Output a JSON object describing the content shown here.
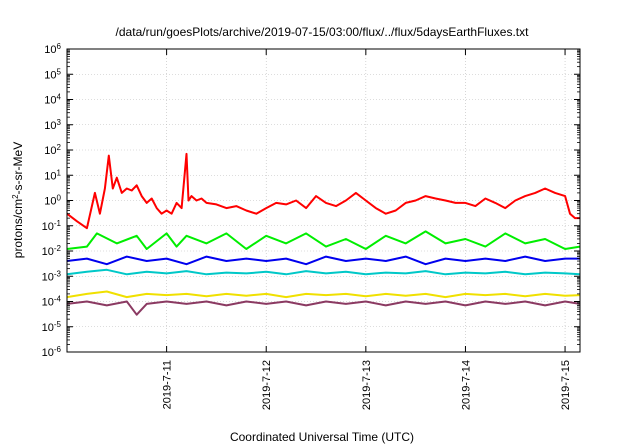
{
  "chart_data": {
    "type": "line",
    "title": "/data/run/goesPlots/archive/2019-07-15/03:00/flux/../flux/5daysEarthFluxes.txt",
    "xlabel": "Coordinated Universal Time (UTC)",
    "ylabel": {
      "prefix": "protons/cm",
      "sup": "2",
      "suffix": "-s-sr-MeV"
    },
    "x_range_days": [
      0.0,
      5.15
    ],
    "y_scale": "log",
    "ylim": [
      1e-06,
      1000000.0
    ],
    "grid": true,
    "legend": "none",
    "y_ticks": [
      {
        "value": 1e-06,
        "base": "10",
        "exp": "-6"
      },
      {
        "value": 1e-05,
        "base": "10",
        "exp": "-5"
      },
      {
        "value": 0.0001,
        "base": "10",
        "exp": "-4"
      },
      {
        "value": 0.001,
        "base": "10",
        "exp": "-3"
      },
      {
        "value": 0.01,
        "base": "10",
        "exp": "-2"
      },
      {
        "value": 0.1,
        "base": "10",
        "exp": "-1"
      },
      {
        "value": 1.0,
        "base": "10",
        "exp": "0"
      },
      {
        "value": 10.0,
        "base": "10",
        "exp": "1"
      },
      {
        "value": 100.0,
        "base": "10",
        "exp": "2"
      },
      {
        "value": 1000.0,
        "base": "10",
        "exp": "3"
      },
      {
        "value": 10000.0,
        "base": "10",
        "exp": "4"
      },
      {
        "value": 100000.0,
        "base": "10",
        "exp": "5"
      },
      {
        "value": 1000000.0,
        "base": "10",
        "exp": "6"
      }
    ],
    "x_ticks": [
      {
        "day": 1,
        "label": "2019-7-11"
      },
      {
        "day": 2,
        "label": "2019-7-12"
      },
      {
        "day": 3,
        "label": "2019-7-13"
      },
      {
        "day": 4,
        "label": "2019-7-14"
      },
      {
        "day": 5,
        "label": "2019-7-15"
      }
    ],
    "series": [
      {
        "color": "#ff0000",
        "x": [
          0.0,
          0.1,
          0.2,
          0.28,
          0.33,
          0.38,
          0.42,
          0.46,
          0.5,
          0.55,
          0.6,
          0.65,
          0.7,
          0.75,
          0.8,
          0.85,
          0.9,
          0.95,
          1.0,
          1.05,
          1.1,
          1.15,
          1.2,
          1.22,
          1.25,
          1.3,
          1.35,
          1.4,
          1.5,
          1.6,
          1.7,
          1.8,
          1.9,
          2.0,
          2.1,
          2.2,
          2.3,
          2.4,
          2.5,
          2.6,
          2.7,
          2.8,
          2.9,
          3.0,
          3.1,
          3.2,
          3.3,
          3.4,
          3.5,
          3.6,
          3.7,
          3.8,
          3.9,
          4.0,
          4.1,
          4.2,
          4.3,
          4.4,
          4.5,
          4.6,
          4.7,
          4.8,
          4.9,
          5.0,
          5.05,
          5.1,
          5.15
        ],
        "y": [
          0.3,
          0.15,
          0.08,
          2.0,
          0.3,
          3.0,
          60,
          3.0,
          8.0,
          2.0,
          3.0,
          2.5,
          4.0,
          1.5,
          0.8,
          1.2,
          0.5,
          0.3,
          0.4,
          0.3,
          0.8,
          0.5,
          70,
          1.0,
          1.5,
          1.0,
          1.2,
          0.8,
          0.7,
          0.5,
          0.6,
          0.4,
          0.3,
          0.5,
          0.8,
          0.7,
          1.0,
          0.5,
          1.5,
          0.8,
          0.6,
          1.0,
          2.0,
          1.0,
          0.5,
          0.3,
          0.4,
          0.8,
          1.0,
          1.5,
          1.2,
          1.0,
          0.8,
          0.8,
          0.6,
          1.2,
          0.8,
          0.5,
          1.0,
          1.5,
          2.0,
          3.0,
          2.0,
          1.5,
          0.3,
          0.2,
          0.2
        ]
      },
      {
        "color": "#00ee00",
        "x": [
          0.0,
          0.2,
          0.3,
          0.5,
          0.7,
          0.8,
          1.0,
          1.1,
          1.2,
          1.4,
          1.6,
          1.8,
          2.0,
          2.2,
          2.4,
          2.6,
          2.8,
          3.0,
          3.2,
          3.4,
          3.6,
          3.8,
          4.0,
          4.2,
          4.4,
          4.6,
          4.8,
          5.0,
          5.15
        ],
        "y": [
          0.012,
          0.015,
          0.05,
          0.02,
          0.04,
          0.012,
          0.05,
          0.015,
          0.04,
          0.02,
          0.05,
          0.012,
          0.04,
          0.02,
          0.05,
          0.015,
          0.03,
          0.012,
          0.04,
          0.02,
          0.06,
          0.02,
          0.03,
          0.015,
          0.05,
          0.02,
          0.03,
          0.012,
          0.015
        ]
      },
      {
        "color": "#0000ee",
        "x": [
          0.0,
          0.2,
          0.4,
          0.6,
          0.8,
          1.0,
          1.2,
          1.4,
          1.6,
          1.8,
          2.0,
          2.2,
          2.4,
          2.6,
          2.8,
          3.0,
          3.2,
          3.4,
          3.6,
          3.8,
          4.0,
          4.2,
          4.4,
          4.6,
          4.8,
          5.0,
          5.15
        ],
        "y": [
          0.004,
          0.005,
          0.003,
          0.006,
          0.004,
          0.005,
          0.003,
          0.006,
          0.004,
          0.005,
          0.004,
          0.005,
          0.003,
          0.006,
          0.004,
          0.005,
          0.004,
          0.006,
          0.003,
          0.005,
          0.004,
          0.005,
          0.004,
          0.006,
          0.004,
          0.005,
          0.005
        ]
      },
      {
        "color": "#00c8c8",
        "x": [
          0.0,
          0.2,
          0.4,
          0.6,
          0.8,
          1.0,
          1.2,
          1.4,
          1.6,
          1.8,
          2.0,
          2.2,
          2.4,
          2.6,
          2.8,
          3.0,
          3.2,
          3.4,
          3.6,
          3.8,
          4.0,
          4.2,
          4.4,
          4.6,
          4.8,
          5.0,
          5.15
        ],
        "y": [
          0.0012,
          0.0015,
          0.0018,
          0.0012,
          0.0015,
          0.0013,
          0.0016,
          0.0012,
          0.0014,
          0.0013,
          0.0015,
          0.0012,
          0.0016,
          0.0013,
          0.0015,
          0.0012,
          0.0014,
          0.0013,
          0.0016,
          0.0012,
          0.0014,
          0.0013,
          0.0015,
          0.0012,
          0.0014,
          0.0013,
          0.0012
        ]
      },
      {
        "color": "#f0e000",
        "x": [
          0.0,
          0.2,
          0.4,
          0.6,
          0.8,
          1.0,
          1.2,
          1.4,
          1.6,
          1.8,
          2.0,
          2.2,
          2.4,
          2.6,
          2.8,
          3.0,
          3.2,
          3.4,
          3.6,
          3.8,
          4.0,
          4.2,
          4.4,
          4.6,
          4.8,
          5.0,
          5.15
        ],
        "y": [
          0.00015,
          0.0002,
          0.00025,
          0.00015,
          0.0002,
          0.00018,
          0.0002,
          0.00016,
          0.0002,
          0.00017,
          0.0002,
          0.00015,
          0.0002,
          0.00018,
          0.0002,
          0.00016,
          0.0002,
          0.00017,
          0.0002,
          0.00015,
          0.0002,
          0.00018,
          0.0002,
          0.00016,
          0.0002,
          0.00017,
          0.00018
        ]
      },
      {
        "color": "#8b3a62",
        "x": [
          0.0,
          0.2,
          0.4,
          0.6,
          0.7,
          0.8,
          1.0,
          1.2,
          1.4,
          1.6,
          1.8,
          2.0,
          2.2,
          2.4,
          2.6,
          2.8,
          3.0,
          3.2,
          3.4,
          3.6,
          3.8,
          4.0,
          4.2,
          4.4,
          4.6,
          4.8,
          5.0,
          5.15
        ],
        "y": [
          8e-05,
          0.0001,
          7e-05,
          0.0001,
          3e-05,
          8e-05,
          0.0001,
          8e-05,
          0.0001,
          7e-05,
          0.0001,
          8e-05,
          0.0001,
          7e-05,
          0.0001,
          8e-05,
          0.0001,
          7e-05,
          0.0001,
          8e-05,
          0.0001,
          7e-05,
          0.0001,
          8e-05,
          0.0001,
          7e-05,
          0.0001,
          8e-05
        ]
      }
    ]
  }
}
